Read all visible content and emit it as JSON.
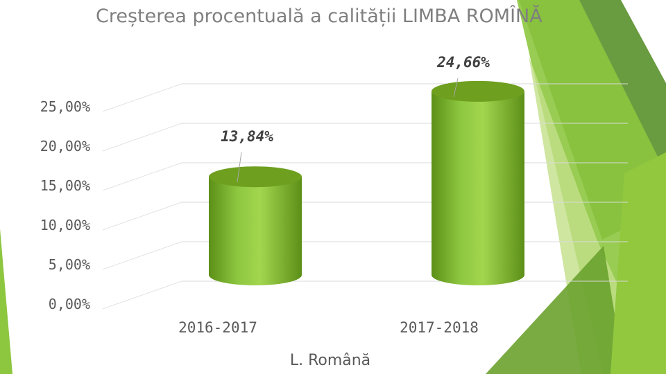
{
  "slide": {
    "accent_colors": [
      "#92c83e",
      "#6aa22e",
      "#c3e08a",
      "#4f8a1e"
    ]
  },
  "chart_data": {
    "type": "bar",
    "title": "Creșterea procentuală a calității LIMBA ROMÎNĂ",
    "xlabel": "L. Română",
    "ylabel": "",
    "categories": [
      "2016-2017",
      "2017-2018"
    ],
    "values": [
      13.84,
      24.66
    ],
    "data_labels": [
      "13,84%",
      "24,66%"
    ],
    "y_ticks": [
      "0,00%",
      "5,00%",
      "10,00%",
      "15,00%",
      "20,00%",
      "25,00%"
    ],
    "ylim": [
      0,
      25
    ],
    "grid": true,
    "legend": "none",
    "bar_color": "#8cc63f"
  }
}
